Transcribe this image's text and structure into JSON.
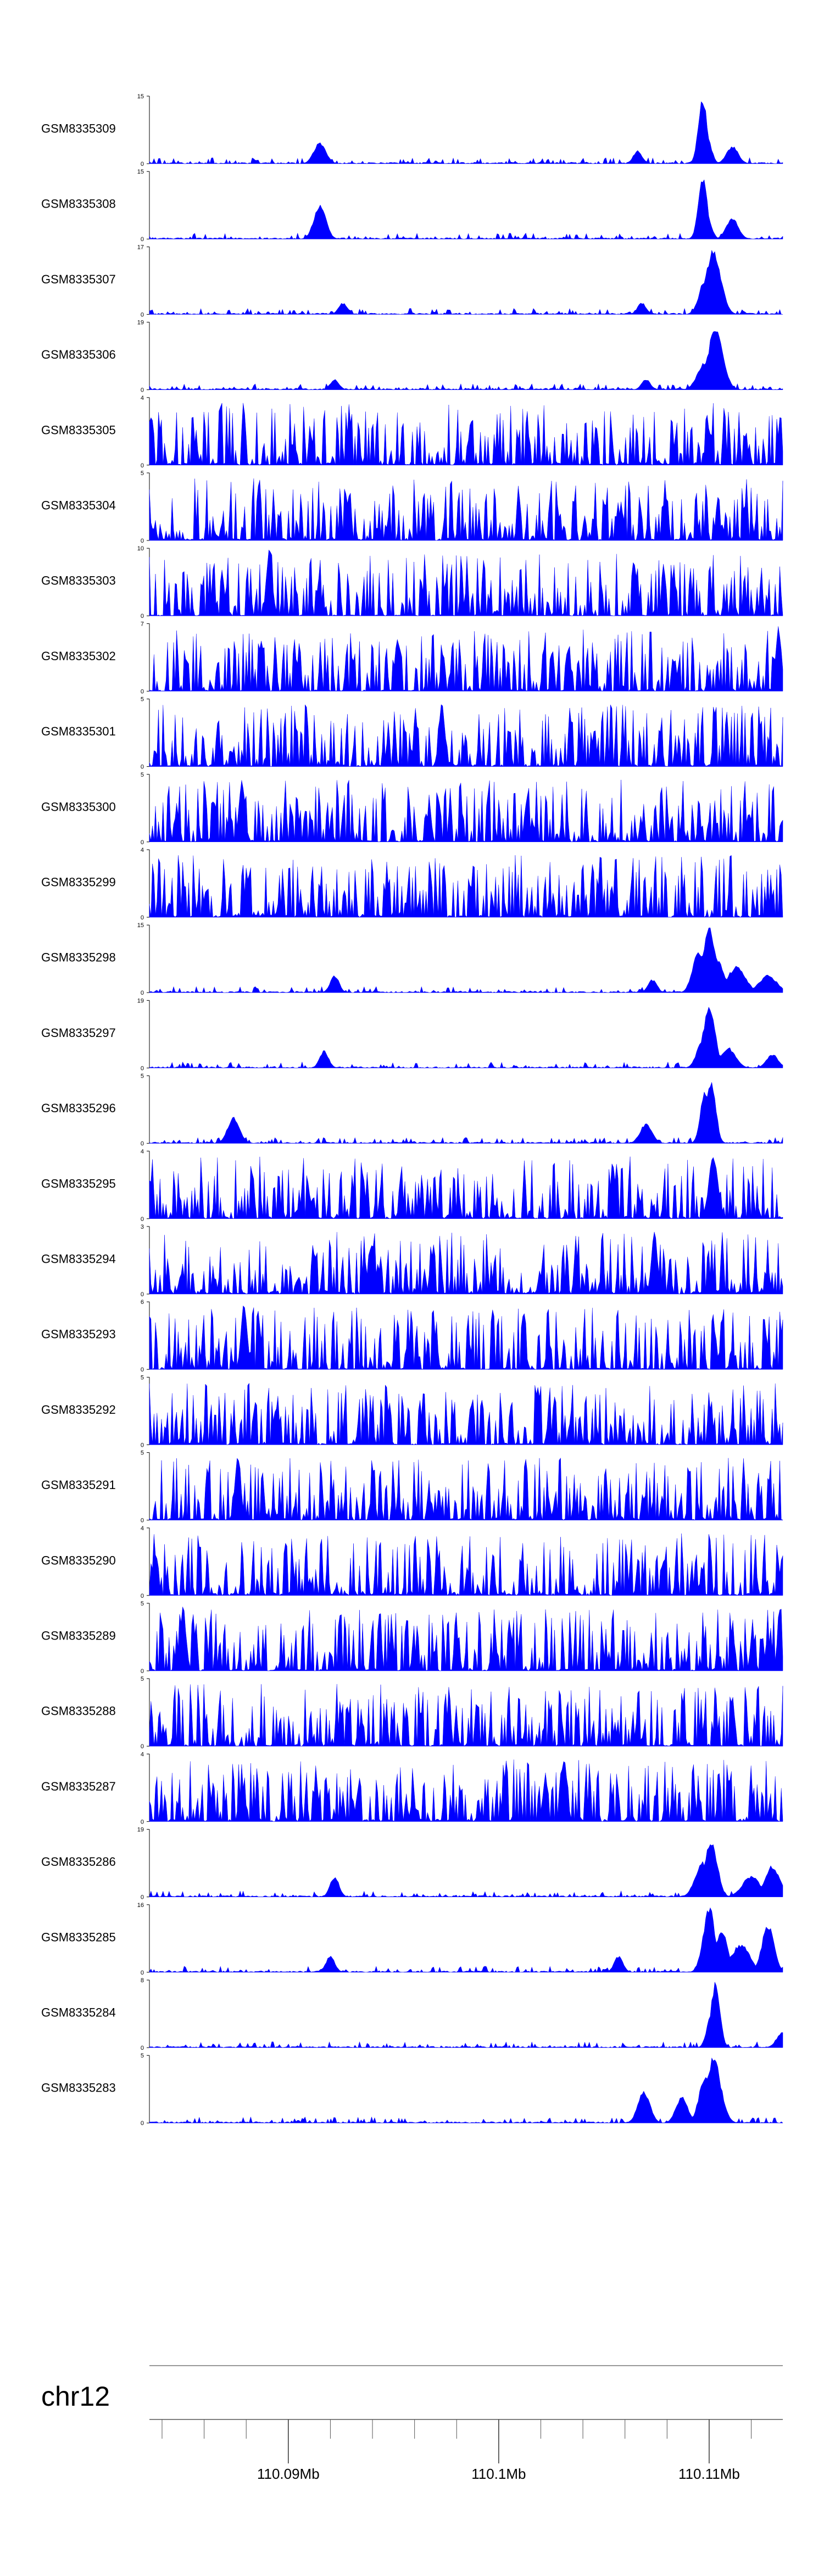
{
  "chart_data": {
    "type": "area",
    "title": "",
    "chromosome": "chr12",
    "x_unit": "Mb",
    "x_range": [
      110.0834,
      110.1135
    ],
    "x_ticks": [
      {
        "value": 110.09,
        "label": "110.09Mb"
      },
      {
        "value": 110.1,
        "label": "110.1Mb"
      },
      {
        "value": 110.11,
        "label": "110.11Mb"
      }
    ],
    "minor_tick_step": 0.002,
    "fill_color": "#0000ff",
    "tracks": [
      {
        "name": "GSM8335309",
        "ymax": 15,
        "seed": 309,
        "profile": "peaks",
        "peaks": [
          [
            110.1097,
            15,
            0.0003
          ],
          [
            110.1099,
            6,
            0.0003
          ],
          [
            110.1111,
            4,
            0.0004
          ],
          [
            110.0915,
            5,
            0.0004
          ],
          [
            110.1066,
            3,
            0.0003
          ]
        ]
      },
      {
        "name": "GSM8335308",
        "ymax": 15,
        "seed": 308,
        "profile": "peaks",
        "peaks": [
          [
            110.1097,
            14,
            0.0003
          ],
          [
            110.0915,
            8,
            0.0004
          ],
          [
            110.1111,
            5,
            0.0004
          ],
          [
            110.1099,
            5,
            0.0003
          ]
        ]
      },
      {
        "name": "GSM8335307",
        "ymax": 17,
        "seed": 307,
        "profile": "peaks",
        "peaks": [
          [
            110.1102,
            17,
            0.0005
          ],
          [
            110.1098,
            9,
            0.0004
          ],
          [
            110.1068,
            3,
            0.0003
          ],
          [
            110.0926,
            3,
            0.0003
          ]
        ]
      },
      {
        "name": "GSM8335306",
        "ymax": 19,
        "seed": 306,
        "profile": "peaks",
        "peaks": [
          [
            110.1103,
            18,
            0.0005
          ],
          [
            110.1098,
            8,
            0.0005
          ],
          [
            110.0922,
            3,
            0.0003
          ],
          [
            110.107,
            3,
            0.0003
          ]
        ]
      },
      {
        "name": "GSM8335305",
        "ymax": 4,
        "seed": 305,
        "profile": "noise",
        "peaks": []
      },
      {
        "name": "GSM8335304",
        "ymax": 5,
        "seed": 304,
        "profile": "noise",
        "peaks": []
      },
      {
        "name": "GSM8335303",
        "ymax": 10,
        "seed": 303,
        "profile": "noise",
        "peaks": [
          [
            110.0891,
            10,
            0.0002
          ]
        ]
      },
      {
        "name": "GSM8335302",
        "ymax": 7,
        "seed": 302,
        "profile": "noise",
        "peaks": [
          [
            110.1133,
            7,
            0.0002
          ]
        ]
      },
      {
        "name": "GSM8335301",
        "ymax": 5,
        "seed": 301,
        "profile": "noise",
        "peaks": [
          [
            110.0973,
            5,
            0.0002
          ]
        ]
      },
      {
        "name": "GSM8335300",
        "ymax": 5,
        "seed": 300,
        "profile": "noise",
        "peaks": [
          [
            110.0878,
            5,
            0.0002
          ]
        ]
      },
      {
        "name": "GSM8335299",
        "ymax": 4,
        "seed": 299,
        "profile": "noise",
        "peaks": []
      },
      {
        "name": "GSM8335298",
        "ymax": 15,
        "seed": 298,
        "profile": "peaks",
        "peaks": [
          [
            110.11,
            15,
            0.0004
          ],
          [
            110.1095,
            10,
            0.0004
          ],
          [
            110.1104,
            8,
            0.0004
          ],
          [
            110.1113,
            6,
            0.0006
          ],
          [
            110.1128,
            4,
            0.0006
          ],
          [
            110.0922,
            4,
            0.0003
          ],
          [
            110.1073,
            3,
            0.0003
          ]
        ]
      },
      {
        "name": "GSM8335297",
        "ymax": 19,
        "seed": 297,
        "profile": "peaks",
        "peaks": [
          [
            110.11,
            18,
            0.0004
          ],
          [
            110.1097,
            8,
            0.0004
          ],
          [
            110.1109,
            6,
            0.0005
          ],
          [
            110.0917,
            5,
            0.0003
          ],
          [
            110.113,
            4,
            0.0004
          ]
        ]
      },
      {
        "name": "GSM8335296",
        "ymax": 5,
        "seed": 296,
        "profile": "peaks",
        "peaks": [
          [
            110.1101,
            5,
            0.0003
          ],
          [
            110.1098,
            4,
            0.0003
          ],
          [
            110.0874,
            2,
            0.0004
          ],
          [
            110.107,
            1.5,
            0.0004
          ]
        ]
      },
      {
        "name": "GSM8335295",
        "ymax": 4,
        "seed": 295,
        "profile": "noise",
        "peaks": [
          [
            110.1102,
            4,
            0.0003
          ]
        ]
      },
      {
        "name": "GSM8335294",
        "ymax": 3,
        "seed": 294,
        "profile": "noise",
        "peaks": [
          [
            110.1074,
            3,
            0.0002
          ]
        ]
      },
      {
        "name": "GSM8335293",
        "ymax": 6,
        "seed": 293,
        "profile": "noise",
        "peaks": [
          [
            110.0879,
            6,
            0.0002
          ]
        ]
      },
      {
        "name": "GSM8335292",
        "ymax": 5,
        "seed": 292,
        "profile": "noise",
        "peaks": []
      },
      {
        "name": "GSM8335291",
        "ymax": 5,
        "seed": 291,
        "profile": "noise",
        "peaks": [
          [
            110.0876,
            5,
            0.0002
          ]
        ]
      },
      {
        "name": "GSM8335290",
        "ymax": 4,
        "seed": 290,
        "profile": "noise",
        "peaks": []
      },
      {
        "name": "GSM8335289",
        "ymax": 5,
        "seed": 289,
        "profile": "noise",
        "peaks": [
          [
            110.085,
            5,
            0.0002
          ]
        ]
      },
      {
        "name": "GSM8335288",
        "ymax": 5,
        "seed": 288,
        "profile": "noise",
        "peaks": []
      },
      {
        "name": "GSM8335287",
        "ymax": 4,
        "seed": 287,
        "profile": "noise",
        "peaks": [
          [
            110.1031,
            4,
            0.0002
          ]
        ]
      },
      {
        "name": "GSM8335286",
        "ymax": 19,
        "seed": 286,
        "profile": "peaks",
        "peaks": [
          [
            110.1101,
            17,
            0.0004
          ],
          [
            110.1097,
            10,
            0.0005
          ],
          [
            110.113,
            9,
            0.0005
          ],
          [
            110.112,
            6,
            0.0006
          ],
          [
            110.0922,
            6,
            0.0003
          ]
        ]
      },
      {
        "name": "GSM8335285",
        "ymax": 16,
        "seed": 285,
        "profile": "peaks",
        "peaks": [
          [
            110.11,
            16,
            0.0004
          ],
          [
            110.1106,
            10,
            0.0004
          ],
          [
            110.1128,
            12,
            0.0004
          ],
          [
            110.1115,
            7,
            0.0006
          ],
          [
            110.092,
            4,
            0.0003
          ],
          [
            110.1057,
            4,
            0.0003
          ]
        ]
      },
      {
        "name": "GSM8335284",
        "ymax": 8,
        "seed": 284,
        "profile": "peaks",
        "peaks": [
          [
            110.1103,
            8,
            0.0003
          ],
          [
            110.1101,
            4,
            0.0003
          ],
          [
            110.1135,
            2,
            0.0004
          ]
        ]
      },
      {
        "name": "GSM8335283",
        "ymax": 5,
        "seed": 283,
        "profile": "peaks",
        "peaks": [
          [
            110.1102,
            5,
            0.0005
          ],
          [
            110.1098,
            3.5,
            0.0004
          ],
          [
            110.1069,
            2.5,
            0.0004
          ],
          [
            110.1087,
            2,
            0.0004
          ]
        ]
      }
    ]
  }
}
